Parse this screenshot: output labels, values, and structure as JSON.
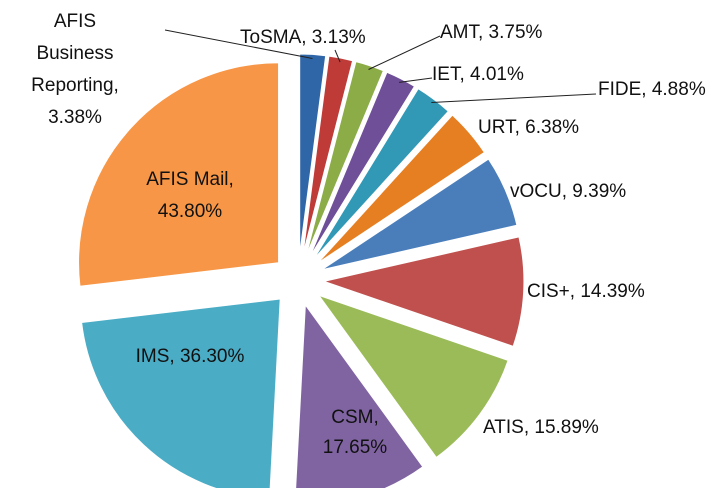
{
  "chart_data": {
    "type": "pie",
    "value_labels": [
      [
        "AFIS",
        "Business",
        "Reporting,",
        "3.38%"
      ],
      [
        "ToSMA, 3.13%"
      ],
      [
        "AMT, 3.75%"
      ],
      [
        "IET, 4.01%"
      ],
      [
        "FIDE, 4.88%"
      ],
      [
        "URT, 6.38%"
      ],
      [
        "vOCU, 9.39%"
      ],
      [
        "CIS+, 14.39%"
      ],
      [
        "ATIS, 15.89%"
      ],
      [
        "CSM,",
        "17.65%"
      ],
      [
        "IMS, 36.30%"
      ],
      [
        "AFIS Mail,",
        "43.80%"
      ]
    ],
    "values": [
      3.38,
      3.13,
      3.75,
      4.01,
      4.88,
      6.38,
      9.39,
      14.39,
      15.89,
      17.65,
      36.3,
      43.8
    ],
    "colors": [
      "#2f66a8",
      "#be3b38",
      "#8bac46",
      "#6e4f98",
      "#3198b5",
      "#e67e22",
      "#4a7ebb",
      "#c0504d",
      "#9bbb59",
      "#8064a2",
      "#4bacc6",
      "#f79646"
    ]
  }
}
